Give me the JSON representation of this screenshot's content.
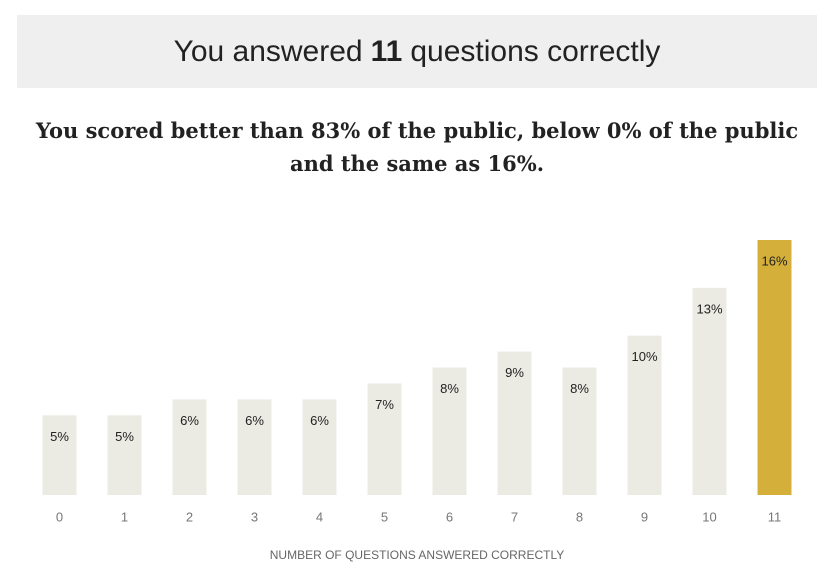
{
  "header": {
    "prefix": "You answered",
    "score": "11",
    "suffix": "questions correctly"
  },
  "summary": "You scored better than 83% of the public, below 0% of the public and the same as 16%.",
  "chart_data": {
    "type": "bar",
    "categories": [
      "0",
      "1",
      "2",
      "3",
      "4",
      "5",
      "6",
      "7",
      "8",
      "9",
      "10",
      "11"
    ],
    "values": [
      5,
      5,
      6,
      6,
      6,
      7,
      8,
      9,
      8,
      10,
      13,
      16
    ],
    "value_labels": [
      "5%",
      "5%",
      "6%",
      "6%",
      "6%",
      "7%",
      "8%",
      "9%",
      "8%",
      "10%",
      "13%",
      "16%"
    ],
    "colors": [
      "#ebebe3",
      "#ebebe3",
      "#ebebe3",
      "#ebebe3",
      "#ebebe3",
      "#ebebe3",
      "#ebebe3",
      "#ebebe3",
      "#ebebe3",
      "#ebebe3",
      "#ebebe3",
      "#d4b03a"
    ],
    "x_label": "NUMBER OF QUESTIONS ANSWERED CORRECTLY"
  }
}
